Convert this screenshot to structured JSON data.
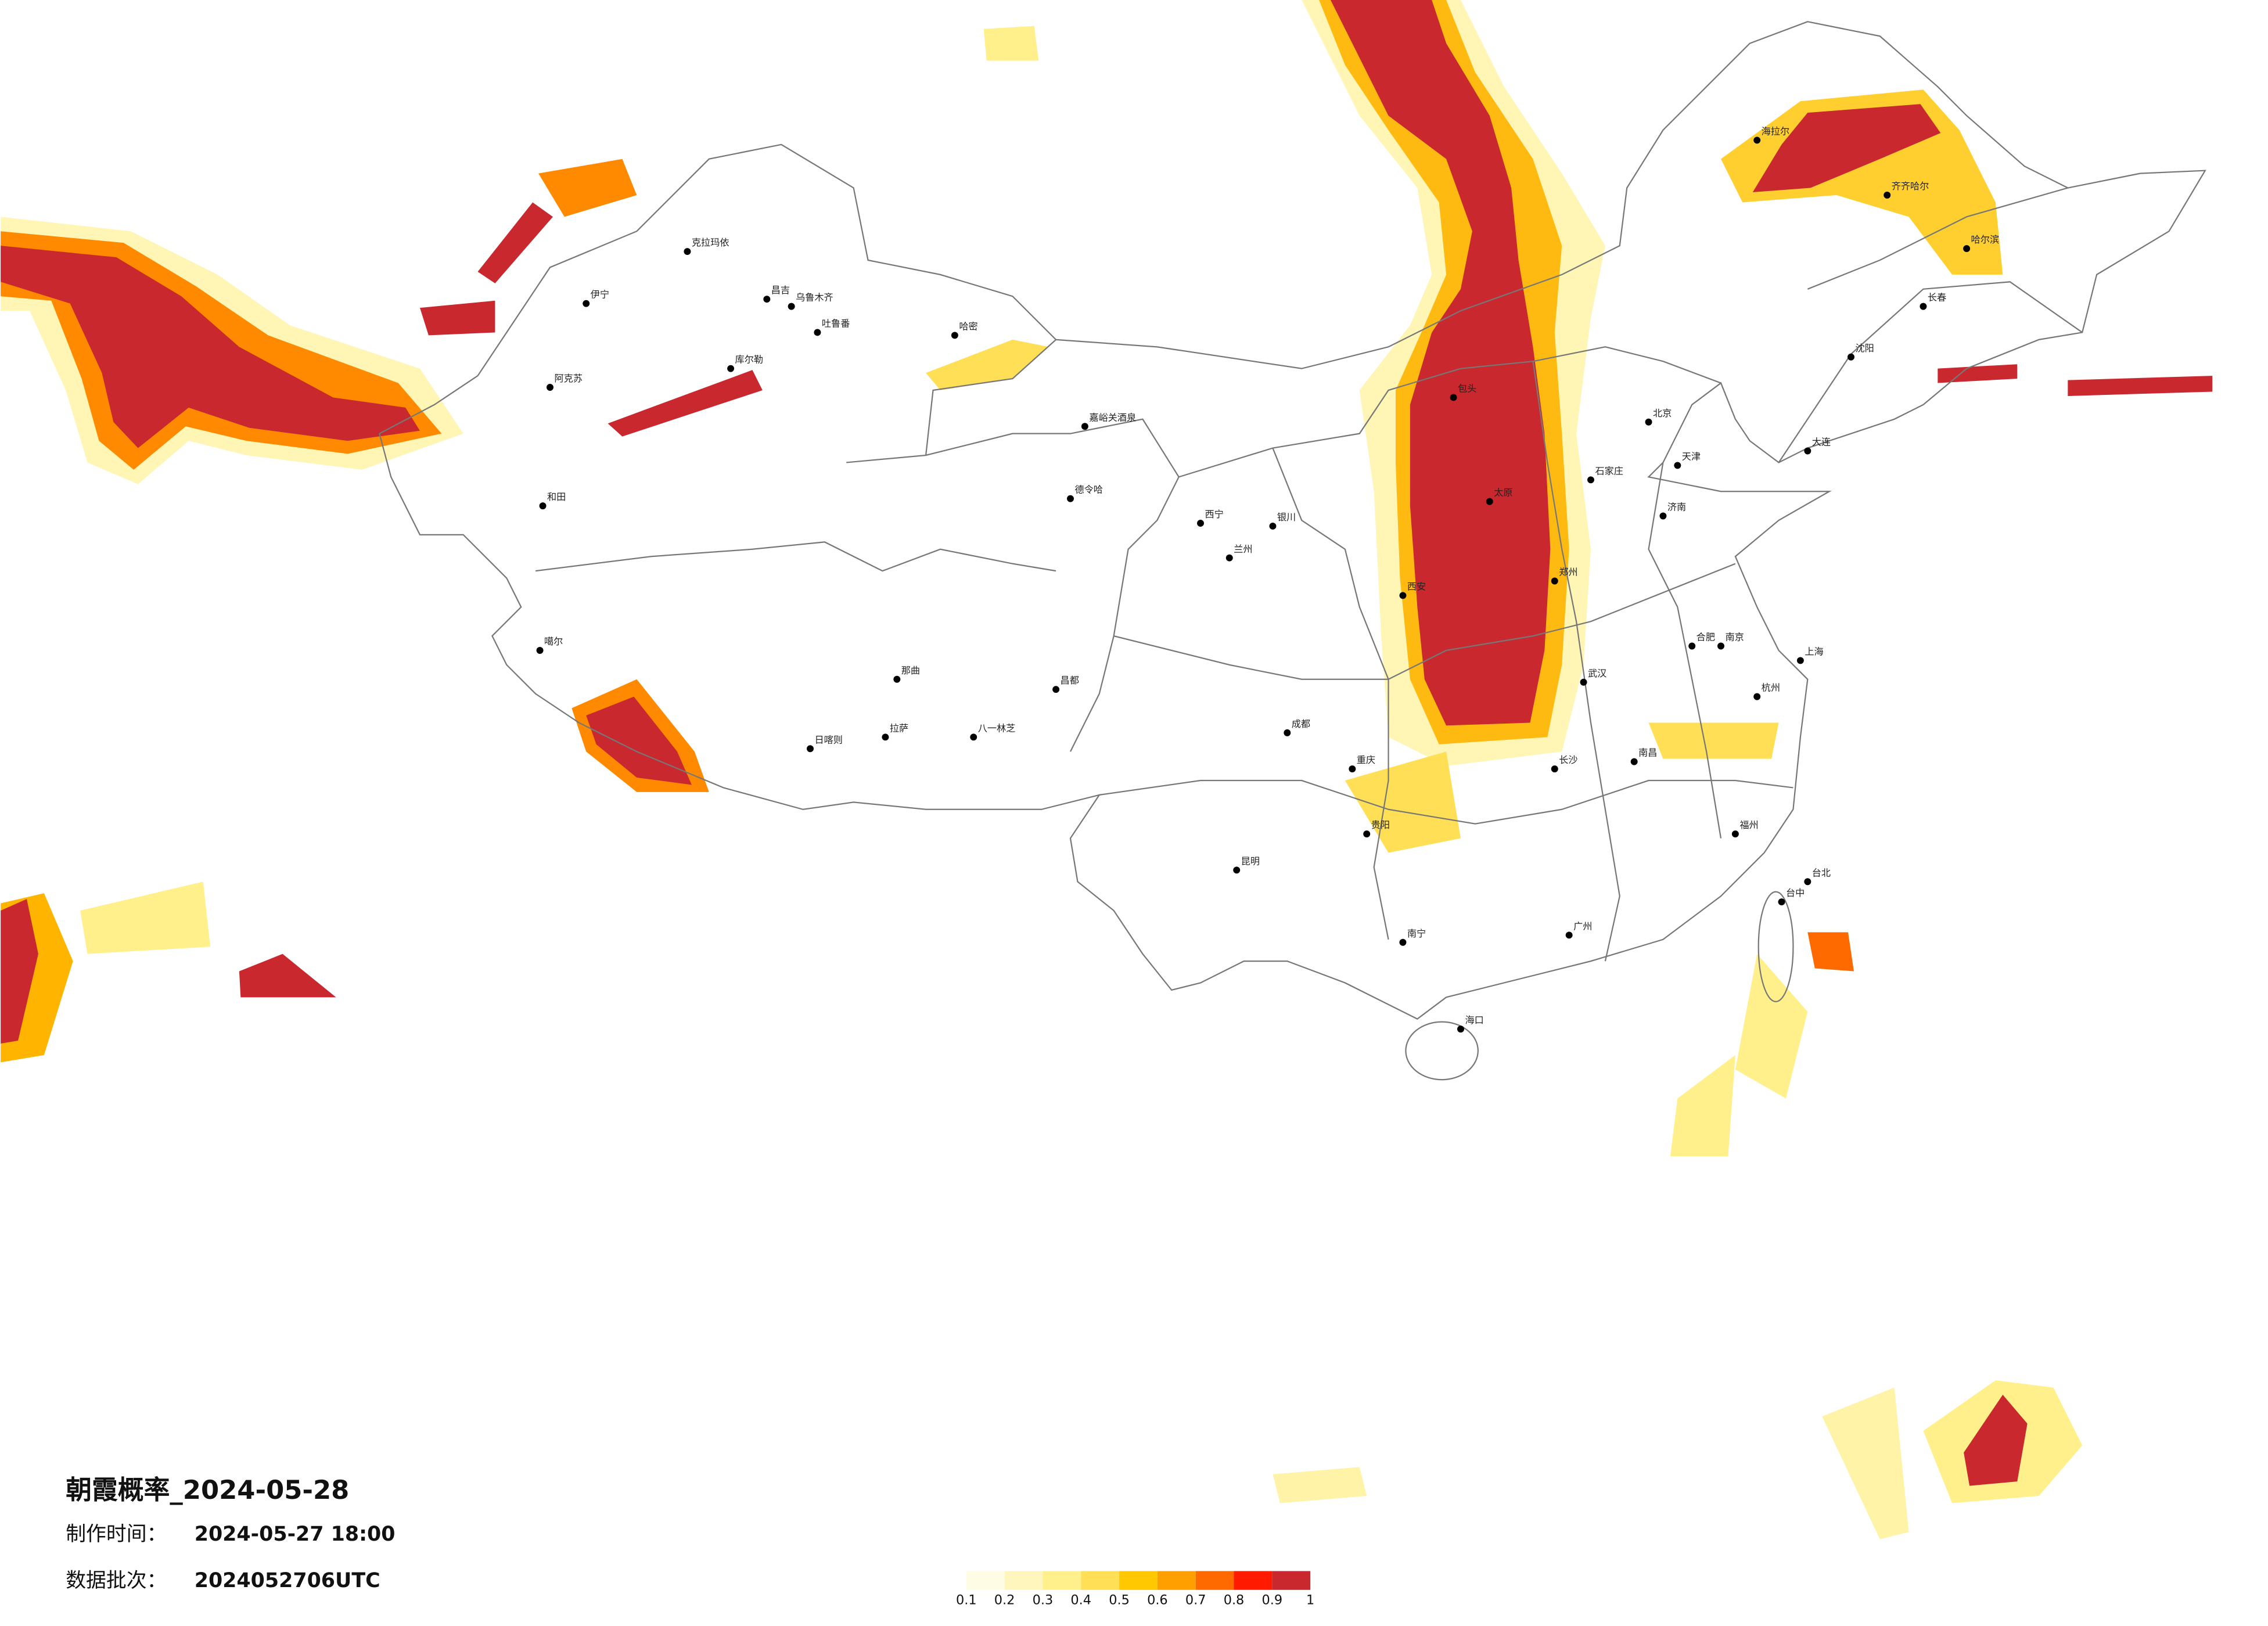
{
  "title": "朝霞概率_2024-05-28",
  "production_label": "制作时间：",
  "production_time": "2024-05-27 18:00",
  "batch_label": "数据批次：",
  "batch_value": "2024052706UTC",
  "legend": {
    "ticks": [
      0.1,
      0.2,
      0.3,
      0.4,
      0.5,
      0.6,
      0.7,
      0.8,
      0.9,
      1
    ],
    "colors": [
      "#fffce6",
      "#fff6bd",
      "#fff08c",
      "#ffdf55",
      "#ffc800",
      "#ff9f00",
      "#ff6a00",
      "#ff1a00",
      "#c8282e"
    ]
  },
  "cities": [
    "克拉玛依",
    "昌吉",
    "乌鲁木齐",
    "吐鲁番",
    "哈密",
    "伊宁",
    "库尔勒",
    "阿克苏",
    "和田",
    "德令哈",
    "嘉峪关酒泉",
    "噶尔",
    "那曲",
    "拉萨",
    "日喀则",
    "八一林芝",
    "昌都",
    "西宁",
    "兰州",
    "银川",
    "包头",
    "北京",
    "天津",
    "石家庄",
    "太原",
    "济南",
    "郑州",
    "西安",
    "武汉",
    "长沙",
    "南昌",
    "合肥",
    "南京",
    "上海",
    "杭州",
    "福州",
    "广州",
    "南宁",
    "海口",
    "贵阳",
    "昆明",
    "成都",
    "重庆",
    "哈尔滨",
    "长春",
    "沈阳",
    "大连",
    "齐齐哈尔",
    "海拉尔",
    "台北",
    "台中"
  ]
}
